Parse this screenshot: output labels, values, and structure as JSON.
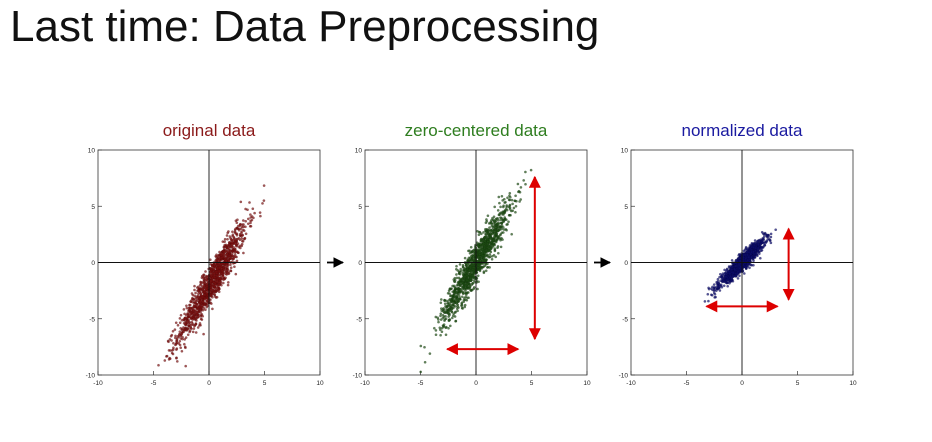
{
  "slide": {
    "title": "Last time: Data Preprocessing"
  },
  "chart_data": [
    {
      "type": "scatter",
      "title": "original data",
      "title_color": "#8b1a1a",
      "point_color": "#7a0f0f",
      "xlim": [
        -10,
        10
      ],
      "ylim": [
        -10,
        10
      ],
      "xticks": [
        "-10",
        "-5",
        "0",
        "5",
        "10"
      ],
      "yticks": [
        "-10",
        "-5",
        "0",
        "5",
        "10"
      ],
      "tick_values": [
        -10,
        -5,
        0,
        5,
        10
      ],
      "distribution": {
        "mean_x": 0.3,
        "mean_y": -1.7,
        "std_x": 1.55,
        "std_y": 2.6,
        "correlation": 0.94,
        "n_points": 1200
      },
      "axes_lines_at_zero": true,
      "arrow_to_next": true
    },
    {
      "type": "scatter",
      "title": "zero-centered data",
      "title_color": "#2e7d1f",
      "point_color": "#1e4d14",
      "xlim": [
        -10,
        10
      ],
      "ylim": [
        -10,
        10
      ],
      "xticks": [
        "-10",
        "-5",
        "0",
        "5",
        "10"
      ],
      "yticks": [
        "-10",
        "-5",
        "0",
        "5",
        "10"
      ],
      "tick_values": [
        -10,
        -5,
        0,
        5,
        10
      ],
      "distribution": {
        "mean_x": 0.0,
        "mean_y": 0.0,
        "std_x": 1.55,
        "std_y": 2.6,
        "correlation": 0.94,
        "n_points": 1200
      },
      "axes_lines_at_zero": true,
      "arrow_to_next": true,
      "annotations": [
        {
          "type": "double-arrow",
          "color": "#dd0000",
          "from": [
            5.3,
            7.6
          ],
          "to": [
            5.3,
            -6.8
          ]
        },
        {
          "type": "double-arrow",
          "color": "#dd0000",
          "from": [
            -2.6,
            -7.7
          ],
          "to": [
            3.8,
            -7.7
          ]
        }
      ]
    },
    {
      "type": "scatter",
      "title": "normalized data",
      "title_color": "#1a1aa0",
      "point_color": "#0d0d6b",
      "xlim": [
        -10,
        10
      ],
      "ylim": [
        -10,
        10
      ],
      "xticks": [
        "-10",
        "-5",
        "0",
        "5",
        "10"
      ],
      "yticks": [
        "-10",
        "-5",
        "0",
        "5",
        "10"
      ],
      "tick_values": [
        -10,
        -5,
        0,
        5,
        10
      ],
      "distribution": {
        "mean_x": 0.0,
        "mean_y": 0.0,
        "std_x": 1.0,
        "std_y": 1.0,
        "correlation": 0.94,
        "n_points": 1200
      },
      "axes_lines_at_zero": true,
      "annotations": [
        {
          "type": "double-arrow",
          "color": "#dd0000",
          "from": [
            4.2,
            3.0
          ],
          "to": [
            4.2,
            -3.3
          ]
        },
        {
          "type": "double-arrow",
          "color": "#dd0000",
          "from": [
            -3.2,
            -3.9
          ],
          "to": [
            3.2,
            -3.9
          ]
        }
      ]
    }
  ]
}
